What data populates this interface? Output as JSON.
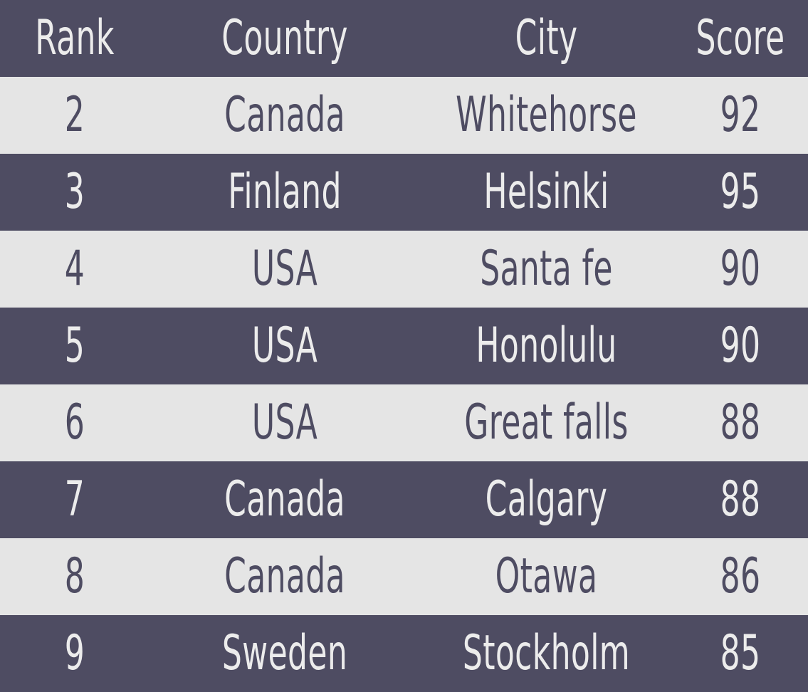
{
  "table": {
    "headers": {
      "rank": "Rank",
      "country": "Country",
      "city": "City",
      "score": "Score"
    },
    "rows": [
      {
        "rank": "2",
        "country": "Canada",
        "city": "Whitehorse",
        "score": "92"
      },
      {
        "rank": "3",
        "country": "Finland",
        "city": "Helsinki",
        "score": "95"
      },
      {
        "rank": "4",
        "country": "USA",
        "city": "Santa fe",
        "score": "90"
      },
      {
        "rank": "5",
        "country": "USA",
        "city": "Honolulu",
        "score": "90"
      },
      {
        "rank": "6",
        "country": "USA",
        "city": "Great falls",
        "score": "88"
      },
      {
        "rank": "7",
        "country": "Canada",
        "city": "Calgary",
        "score": "88"
      },
      {
        "rank": "8",
        "country": "Canada",
        "city": "Otawa",
        "score": "86"
      },
      {
        "rank": "9",
        "country": "Sweden",
        "city": "Stockholm",
        "score": "85"
      }
    ]
  },
  "colors": {
    "dark": "#4e4c62",
    "light": "#e5e5e5",
    "dark_text": "#ececec",
    "light_text": "#4e4c62"
  }
}
